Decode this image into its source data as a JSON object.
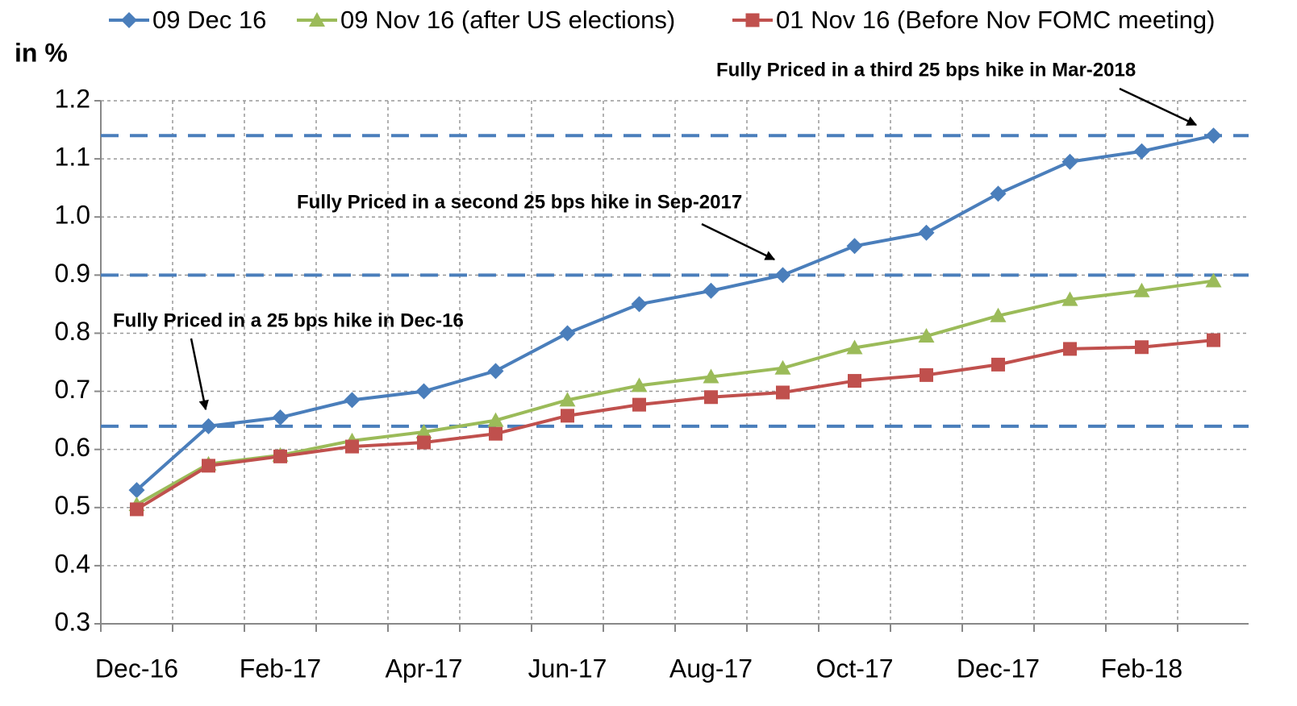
{
  "chart_data": {
    "type": "line",
    "y_label": "in %",
    "categories": [
      "Dec-16",
      null,
      "Feb-17",
      null,
      "Apr-17",
      null,
      "Jun-17",
      null,
      "Aug-17",
      null,
      "Oct-17",
      null,
      "Dec-17",
      null,
      "Feb-18",
      null
    ],
    "series": [
      {
        "name": "09 Dec 16",
        "color": "#4a7ebb",
        "marker": "diamond",
        "values": [
          0.53,
          0.64,
          0.655,
          0.685,
          0.7,
          0.735,
          0.8,
          0.85,
          0.873,
          0.9,
          0.95,
          0.973,
          1.04,
          1.095,
          1.113,
          1.14
        ]
      },
      {
        "name": "09 Nov 16 (after US elections)",
        "color": "#9bbb59",
        "marker": "triangle",
        "values": [
          0.505,
          0.575,
          0.59,
          0.615,
          0.63,
          0.65,
          0.685,
          0.71,
          0.725,
          0.74,
          0.775,
          0.795,
          0.83,
          0.858,
          0.873,
          0.89
        ]
      },
      {
        "name": "01 Nov 16 (Before Nov FOMC meeting)",
        "color": "#c0504d",
        "marker": "square",
        "values": [
          0.497,
          0.572,
          0.588,
          0.605,
          0.612,
          0.627,
          0.658,
          0.677,
          0.69,
          0.698,
          0.718,
          0.728,
          0.746,
          0.773,
          0.776,
          0.788
        ]
      }
    ],
    "ylim": [
      0.3,
      1.2
    ],
    "yticks": [
      0.3,
      0.4,
      0.5,
      0.6,
      0.7,
      0.8,
      0.9,
      {
        "value": 1.0,
        "label": "1.0"
      },
      1.1,
      1.2
    ],
    "reference_lines": [
      0.64,
      0.9,
      1.14
    ],
    "reference_color": "#4a7ebb",
    "grid": true,
    "legend": "top",
    "annotations": [
      "Fully Priced in a 25 bps hike in Dec-16",
      "Fully Priced in a second 25 bps hike in Sep-2017",
      "Fully Priced in a third 25 bps hike in Mar-2018"
    ]
  }
}
